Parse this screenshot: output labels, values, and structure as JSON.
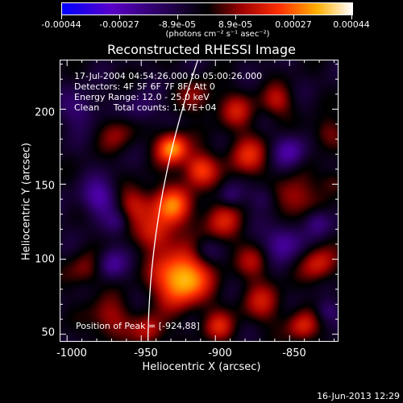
{
  "colorbar": {
    "tick_labels": [
      "-0.00044",
      "-0.00027",
      "-8.9e-05",
      "8.9e-05",
      "0.00027",
      "0.00044"
    ],
    "units": "(photons cm⁻² s⁻¹ asec⁻²)",
    "stops": [
      "#0000ff",
      "#5a00c8",
      "#000000",
      "#a00000",
      "#ff3000",
      "#ffb000",
      "#ffffff"
    ]
  },
  "title": "Reconstructed RHESSI Image",
  "info": {
    "time_range": "17-Jul-2004 04:54:26.000 to 05:00:26.000",
    "detectors": "Detectors: 4F 5F 6F 7F 8F, Att 0",
    "energy": "Energy Range: 12.0 - 25.0 keV",
    "clean": "Clean     Total counts: 1.17E+04"
  },
  "peak": "Position of Peak = [-924,88]",
  "axes": {
    "xlabel": "Heliocentric X (arcsec)",
    "ylabel": "Heliocentric Y (arcsec)",
    "xlim": [
      -1005,
      -817
    ],
    "ylim": [
      45,
      233
    ],
    "x_ticks": [
      "-1000",
      "-950",
      "-900",
      "-850"
    ],
    "y_ticks": [
      "50",
      "100",
      "150",
      "200"
    ]
  },
  "footer_date": "16-Jun-2013 12:29",
  "limb_color": "#ffffff"
}
